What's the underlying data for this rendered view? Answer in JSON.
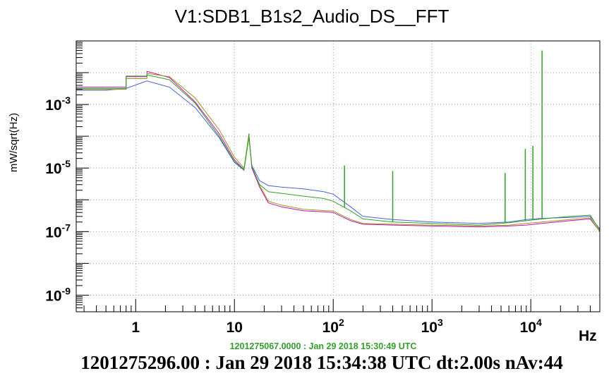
{
  "colors": {
    "background": "#ffffff",
    "axis": "#000000",
    "grid": "#9a9a9a",
    "reference_timestamp": "#33a02c"
  },
  "chart_data": {
    "type": "line",
    "title": "V1:SDB1_B1s2_Audio_DS__FFT",
    "ylabel": "mW/sqrt(Hz)",
    "xlabel": "Hz",
    "xscale": "log",
    "yscale": "log",
    "xlim": [
      0.25,
      50000
    ],
    "ylim": [
      3e-10,
      0.1
    ],
    "grid": true,
    "y_ticks": [
      {
        "base": "10",
        "exp": "-3",
        "value": 0.001
      },
      {
        "base": "10",
        "exp": "-5",
        "value": 1e-05
      },
      {
        "base": "10",
        "exp": "-7",
        "value": 1e-07
      },
      {
        "base": "10",
        "exp": "-9",
        "value": 1e-09
      }
    ],
    "x_ticks": [
      {
        "base": "1",
        "exp": "",
        "value": 1
      },
      {
        "base": "10",
        "exp": "",
        "value": 10
      },
      {
        "base": "10",
        "exp": "2",
        "value": 100
      },
      {
        "base": "10",
        "exp": "3",
        "value": 1000
      },
      {
        "base": "10",
        "exp": "4",
        "value": 10000
      }
    ],
    "series": [
      {
        "color": "#cc0bb8",
        "x": [
          0.25,
          0.5,
          0.8,
          0.8,
          1.3,
          1.3,
          2.2,
          4,
          7,
          10,
          12.5,
          14,
          15,
          18,
          22,
          30,
          50,
          80,
          100,
          150,
          200,
          400,
          1000,
          3000,
          6000,
          9000,
          13000,
          25000,
          40000,
          50000
        ],
        "y": [
          0.0035,
          0.0035,
          0.0035,
          0.0075,
          0.0075,
          0.011,
          0.007,
          0.0012,
          0.00012,
          1.8e-05,
          9e-06,
          0.00011,
          1e-05,
          2.5e-06,
          8e-07,
          6e-07,
          4.5e-07,
          4.2e-07,
          4e-07,
          2.2e-07,
          1.7e-07,
          1.6e-07,
          1.5e-07,
          1.4e-07,
          1.5e-07,
          1.6e-07,
          1.8e-07,
          2.2e-07,
          2.5e-07,
          1e-07
        ]
      },
      {
        "color": "#4a63d8",
        "x": [
          0.25,
          0.5,
          0.8,
          1.3,
          2.2,
          4,
          7,
          10,
          12.5,
          14,
          15,
          18,
          22,
          30,
          50,
          80,
          100,
          150,
          200,
          400,
          1000,
          3000,
          6000,
          9000,
          13000,
          25000,
          40000,
          50000
        ],
        "y": [
          0.0028,
          0.0028,
          0.0032,
          0.0055,
          0.0035,
          0.0008,
          9e-05,
          1.5e-05,
          8.5e-06,
          0.0001,
          1.2e-05,
          4e-06,
          2.8e-06,
          2.5e-06,
          2.2e-06,
          1.8e-06,
          1.5e-06,
          6e-07,
          3e-07,
          2.4e-07,
          2e-07,
          1.8e-07,
          2e-07,
          2.4e-07,
          2.6e-07,
          2.8e-07,
          3e-07,
          1.2e-07
        ]
      },
      {
        "color": "#9a9a1a",
        "x": [
          0.25,
          0.5,
          0.8,
          0.8,
          1.3,
          1.3,
          2.2,
          4,
          7,
          10,
          12.5,
          14,
          15,
          18,
          22,
          30,
          50,
          80,
          100,
          150,
          200,
          400,
          1000,
          3000,
          6000,
          9000,
          13000,
          25000,
          40000,
          50000
        ],
        "y": [
          0.003,
          0.003,
          0.003,
          0.0065,
          0.0065,
          0.0095,
          0.0075,
          0.0016,
          0.00016,
          2.2e-05,
          1e-05,
          0.00012,
          1.1e-05,
          2.8e-06,
          9e-07,
          6.8e-07,
          5e-07,
          4.6e-07,
          4.4e-07,
          2.4e-07,
          1.8e-07,
          1.7e-07,
          1.6e-07,
          1.5e-07,
          1.6e-07,
          1.8e-07,
          2e-07,
          2.4e-07,
          2.7e-07,
          1e-07
        ]
      },
      {
        "color": "#33a02c",
        "x": [
          0.25,
          0.5,
          0.8,
          0.8,
          1.3,
          1.3,
          2.2,
          4,
          7,
          10,
          12.5,
          14,
          15,
          18,
          22,
          30,
          50,
          80,
          100,
          150,
          200,
          400,
          1000,
          3000,
          6000,
          9000,
          13000,
          25000,
          40000,
          50000
        ],
        "y": [
          0.0032,
          0.0032,
          0.0032,
          0.0078,
          0.0078,
          0.0085,
          0.006,
          0.0011,
          0.0001,
          1.6e-05,
          9e-06,
          9e-05,
          1.1e-05,
          3e-06,
          1.8e-06,
          1.6e-06,
          1.3e-06,
          1.1e-06,
          9e-07,
          4.5e-07,
          2.5e-07,
          2e-07,
          1.8e-07,
          1.6e-07,
          1.9e-07,
          2.2e-07,
          2.5e-07,
          3e-07,
          3.3e-07,
          1.1e-07
        ]
      }
    ],
    "spikes": [
      {
        "x": 14,
        "y": 0.00012
      },
      {
        "x": 130,
        "y": 1.2e-05
      },
      {
        "x": 400,
        "y": 8e-06
      },
      {
        "x": 8800,
        "y": 4e-05
      },
      {
        "x": 10500,
        "y": 5e-05
      },
      {
        "x": 13000,
        "y": 0.05
      },
      {
        "x": 5500,
        "y": 7e-06
      }
    ]
  },
  "timestamps": {
    "reference": "1201275067.0000 : Jan 29 2018 15:30:49 UTC",
    "main": "1201275296.00 : Jan 29 2018 15:34:38 UTC dt:2.00s nAv:44"
  }
}
